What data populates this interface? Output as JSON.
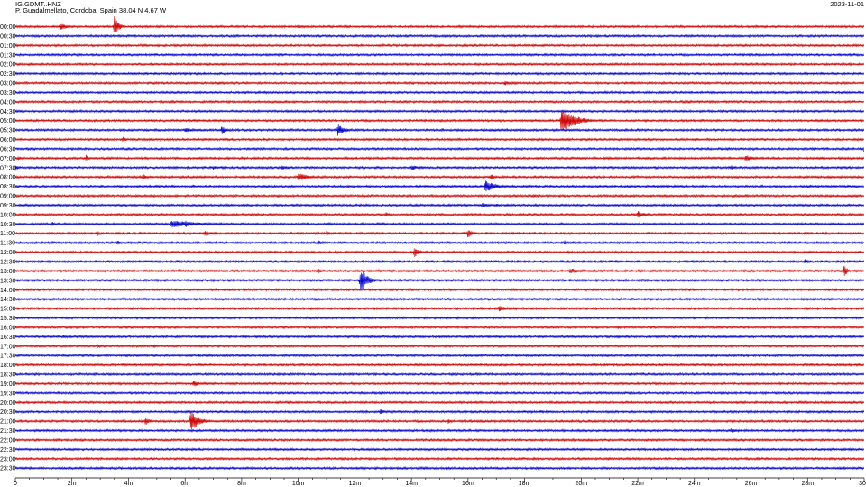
{
  "header": {
    "station_id": "IG.GDMT..HNZ",
    "location": "P. Guadalmellato, Cordoba, Spain  38.04 N 4.67 W",
    "date": "2023-11-01"
  },
  "chart_data": {
    "type": "line",
    "title": "IG.GDMT..HNZ",
    "xlabel": "",
    "ylabel": "",
    "xlim_minutes": [
      0,
      30
    ],
    "x_tick_labels": [
      "0",
      "2m",
      "4m",
      "6m",
      "8m",
      "10m",
      "12m",
      "14m",
      "16m",
      "18m",
      "20m",
      "22m",
      "24m",
      "26m",
      "28m",
      "30"
    ],
    "row_labels": [
      "00:00",
      "00:30",
      "01:00",
      "01:30",
      "02:00",
      "02:30",
      "03:00",
      "03:30",
      "04:00",
      "04:30",
      "05:00",
      "05:30",
      "06:00",
      "06:30",
      "07:00",
      "07:30",
      "08:00",
      "08:30",
      "09:00",
      "09:30",
      "10:00",
      "10:30",
      "11:00",
      "11:30",
      "12:00",
      "12:30",
      "13:00",
      "13:30",
      "14:00",
      "14:30",
      "15:00",
      "15:30",
      "16:00",
      "16:30",
      "17:00",
      "17:30",
      "18:00",
      "18:30",
      "19:00",
      "19:30",
      "20:00",
      "20:30",
      "21:00",
      "21:30",
      "22:00",
      "22:30",
      "23:00",
      "23:30"
    ],
    "trace_colors": [
      "#cc0000",
      "#0000cc"
    ],
    "base_noise": 1.0,
    "events": [
      {
        "row": 0,
        "minute": 1.6,
        "amp": 4,
        "dur": 0.25
      },
      {
        "row": 0,
        "minute": 3.5,
        "amp": 12,
        "dur": 0.15
      },
      {
        "row": 0,
        "minute": 10.0,
        "amp": 2.5,
        "dur": 0.15
      },
      {
        "row": 6,
        "minute": 7.2,
        "amp": 2,
        "dur": 0.2
      },
      {
        "row": 6,
        "minute": 17.3,
        "amp": 3,
        "dur": 0.3
      },
      {
        "row": 10,
        "minute": 19.3,
        "amp": 14,
        "dur": 0.5
      },
      {
        "row": 11,
        "minute": 6.0,
        "amp": 3,
        "dur": 0.3
      },
      {
        "row": 11,
        "minute": 7.3,
        "amp": 5,
        "dur": 0.15
      },
      {
        "row": 11,
        "minute": 11.4,
        "amp": 7,
        "dur": 0.25
      },
      {
        "row": 12,
        "minute": 3.8,
        "amp": 4,
        "dur": 0.1
      },
      {
        "row": 13,
        "minute": 13.3,
        "amp": 2,
        "dur": 0.1
      },
      {
        "row": 13,
        "minute": 30.0,
        "amp": 4,
        "dur": 0.1
      },
      {
        "row": 14,
        "minute": 0.1,
        "amp": 3,
        "dur": 0.1
      },
      {
        "row": 14,
        "minute": 2.5,
        "amp": 4,
        "dur": 0.1
      },
      {
        "row": 14,
        "minute": 25.8,
        "amp": 4,
        "dur": 0.3
      },
      {
        "row": 14,
        "minute": 28.5,
        "amp": 2,
        "dur": 0.1
      },
      {
        "row": 14,
        "minute": 20.8,
        "amp": 2,
        "dur": 0.1
      },
      {
        "row": 15,
        "minute": 0.0,
        "amp": 4,
        "dur": 0.1
      },
      {
        "row": 15,
        "minute": 9.4,
        "amp": 3,
        "dur": 0.3
      },
      {
        "row": 15,
        "minute": 14.0,
        "amp": 3,
        "dur": 0.3
      },
      {
        "row": 15,
        "minute": 7.0,
        "amp": 2,
        "dur": 0.2
      },
      {
        "row": 15,
        "minute": 25.3,
        "amp": 3,
        "dur": 0.2
      },
      {
        "row": 16,
        "minute": 4.5,
        "amp": 4,
        "dur": 0.15
      },
      {
        "row": 16,
        "minute": 10.0,
        "amp": 5,
        "dur": 0.4
      },
      {
        "row": 16,
        "minute": 16.8,
        "amp": 4,
        "dur": 0.15
      },
      {
        "row": 17,
        "minute": 16.6,
        "amp": 7,
        "dur": 0.4
      },
      {
        "row": 17,
        "minute": 6.3,
        "amp": 2,
        "dur": 0.1
      },
      {
        "row": 17,
        "minute": 28.0,
        "amp": 2,
        "dur": 0.1
      },
      {
        "row": 18,
        "minute": 4.3,
        "amp": 2,
        "dur": 0.1
      },
      {
        "row": 18,
        "minute": 18.3,
        "amp": 2,
        "dur": 0.2
      },
      {
        "row": 18,
        "minute": 25.4,
        "amp": 2,
        "dur": 0.1
      },
      {
        "row": 19,
        "minute": 16.5,
        "amp": 3,
        "dur": 0.3
      },
      {
        "row": 19,
        "minute": 17.0,
        "amp": 2,
        "dur": 0.2
      },
      {
        "row": 20,
        "minute": 13.1,
        "amp": 3,
        "dur": 0.15
      },
      {
        "row": 20,
        "minute": 22.0,
        "amp": 4,
        "dur": 0.3
      },
      {
        "row": 20,
        "minute": 29.2,
        "amp": 2,
        "dur": 0.1
      },
      {
        "row": 21,
        "minute": 1.3,
        "amp": 3,
        "dur": 0.1
      },
      {
        "row": 21,
        "minute": 5.5,
        "amp": 4,
        "dur": 1.2
      },
      {
        "row": 21,
        "minute": 6.0,
        "amp": 5,
        "dur": 0.2
      },
      {
        "row": 21,
        "minute": 8.5,
        "amp": 2,
        "dur": 0.1
      },
      {
        "row": 21,
        "minute": 11.0,
        "amp": 2,
        "dur": 0.2
      },
      {
        "row": 21,
        "minute": 30.0,
        "amp": 3,
        "dur": 0.1
      },
      {
        "row": 22,
        "minute": 2.9,
        "amp": 4,
        "dur": 0.1
      },
      {
        "row": 22,
        "minute": 6.7,
        "amp": 3,
        "dur": 0.4
      },
      {
        "row": 22,
        "minute": 11.0,
        "amp": 3,
        "dur": 0.2
      },
      {
        "row": 22,
        "minute": 16.0,
        "amp": 6,
        "dur": 0.15
      },
      {
        "row": 22,
        "minute": 28.0,
        "amp": 2,
        "dur": 0.2
      },
      {
        "row": 23,
        "minute": 3.6,
        "amp": 3,
        "dur": 0.15
      },
      {
        "row": 23,
        "minute": 9.0,
        "amp": 2,
        "dur": 0.2
      },
      {
        "row": 23,
        "minute": 10.7,
        "amp": 3,
        "dur": 0.2
      },
      {
        "row": 23,
        "minute": 19.7,
        "amp": 2,
        "dur": 0.2
      },
      {
        "row": 23,
        "minute": 19.4,
        "amp": 3,
        "dur": 0.15
      },
      {
        "row": 24,
        "minute": 14.1,
        "amp": 6,
        "dur": 0.2
      },
      {
        "row": 24,
        "minute": 9.7,
        "amp": 2,
        "dur": 0.2
      },
      {
        "row": 24,
        "minute": 16.2,
        "amp": 2,
        "dur": 0.1
      },
      {
        "row": 24,
        "minute": 23.6,
        "amp": 2,
        "dur": 0.1
      },
      {
        "row": 25,
        "minute": 27.9,
        "amp": 3,
        "dur": 0.2
      },
      {
        "row": 26,
        "minute": 5.8,
        "amp": 3,
        "dur": 0.1
      },
      {
        "row": 26,
        "minute": 10.7,
        "amp": 4,
        "dur": 0.1
      },
      {
        "row": 26,
        "minute": 19.6,
        "amp": 3,
        "dur": 0.5
      },
      {
        "row": 26,
        "minute": 29.3,
        "amp": 8,
        "dur": 0.1
      },
      {
        "row": 27,
        "minute": 12.2,
        "amp": 14,
        "dur": 0.25
      },
      {
        "row": 27,
        "minute": 19.6,
        "amp": 2,
        "dur": 0.1
      },
      {
        "row": 28,
        "minute": 14.0,
        "amp": 2,
        "dur": 0.1
      },
      {
        "row": 30,
        "minute": 17.1,
        "amp": 4,
        "dur": 0.3
      },
      {
        "row": 30,
        "minute": 18.7,
        "amp": 2,
        "dur": 0.1
      },
      {
        "row": 31,
        "minute": 5.8,
        "amp": 2,
        "dur": 0.1
      },
      {
        "row": 31,
        "minute": 10.3,
        "amp": 2,
        "dur": 0.1
      },
      {
        "row": 32,
        "minute": 21.3,
        "amp": 2,
        "dur": 0.2
      },
      {
        "row": 33,
        "minute": 1.7,
        "amp": 2,
        "dur": 0.1
      },
      {
        "row": 34,
        "minute": 2.9,
        "amp": 3,
        "dur": 0.1
      },
      {
        "row": 34,
        "minute": 4.9,
        "amp": 3,
        "dur": 0.1
      },
      {
        "row": 34,
        "minute": 19.2,
        "amp": 2,
        "dur": 0.1
      },
      {
        "row": 34,
        "minute": 23.8,
        "amp": 2,
        "dur": 0.1
      },
      {
        "row": 38,
        "minute": 6.3,
        "amp": 4,
        "dur": 0.2
      },
      {
        "row": 41,
        "minute": 8.1,
        "amp": 2,
        "dur": 0.1
      },
      {
        "row": 41,
        "minute": 12.9,
        "amp": 4,
        "dur": 0.15
      },
      {
        "row": 41,
        "minute": 18.6,
        "amp": 2,
        "dur": 0.1
      },
      {
        "row": 42,
        "minute": 4.6,
        "amp": 5,
        "dur": 0.15
      },
      {
        "row": 42,
        "minute": 6.2,
        "amp": 12,
        "dur": 0.3
      },
      {
        "row": 42,
        "minute": 15.3,
        "amp": 3,
        "dur": 0.15
      },
      {
        "row": 42,
        "minute": 20.3,
        "amp": 2,
        "dur": 0.1
      },
      {
        "row": 43,
        "minute": 25.3,
        "amp": 3,
        "dur": 0.2
      }
    ]
  }
}
